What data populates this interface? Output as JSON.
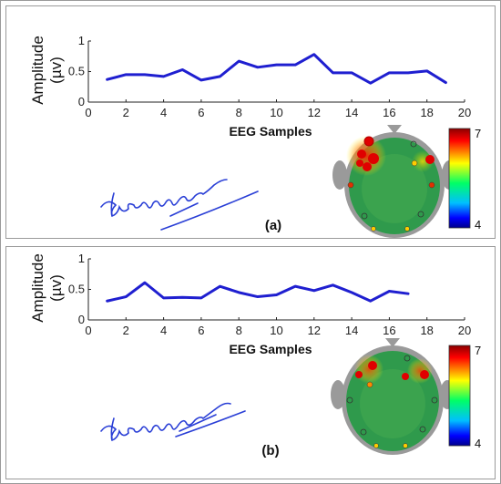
{
  "chart_data": [
    {
      "type": "line",
      "panel_label": "(a)",
      "xlabel": "EEG Samples",
      "ylabel_line1": "Amplitude",
      "ylabel_line2": "(µv)",
      "xlim": [
        0,
        20
      ],
      "ylim": [
        0,
        1
      ],
      "xticks": [
        "0",
        "2",
        "4",
        "6",
        "8",
        "10",
        "12",
        "14",
        "16",
        "18",
        "20"
      ],
      "yticks": [
        "0",
        "0.5",
        "1"
      ],
      "color": "#1f1fd0",
      "x": [
        1,
        2,
        3,
        4,
        5,
        6,
        7,
        8,
        9,
        10,
        11,
        12,
        13,
        14,
        15,
        16,
        17,
        18,
        19
      ],
      "y": [
        0.37,
        0.45,
        0.45,
        0.42,
        0.53,
        0.36,
        0.42,
        0.67,
        0.57,
        0.61,
        0.61,
        0.78,
        0.48,
        0.48,
        0.31,
        0.48,
        0.48,
        0.51,
        0.32
      ],
      "colorbar": {
        "max_label": "7",
        "min_label": "4"
      }
    },
    {
      "type": "line",
      "panel_label": "(b)",
      "xlabel": "EEG Samples",
      "ylabel_line1": "Amplitude",
      "ylabel_line2": "(µv)",
      "xlim": [
        0,
        20
      ],
      "ylim": [
        0,
        1
      ],
      "xticks": [
        "0",
        "2",
        "4",
        "6",
        "8",
        "10",
        "12",
        "14",
        "16",
        "18",
        "20"
      ],
      "yticks": [
        "0",
        "0.5",
        "1"
      ],
      "color": "#1f1fd0",
      "x": [
        1,
        2,
        3,
        4,
        5,
        6,
        7,
        8,
        9,
        10,
        11,
        12,
        13,
        14,
        15,
        16,
        17
      ],
      "y": [
        0.31,
        0.38,
        0.61,
        0.36,
        0.37,
        0.36,
        0.55,
        0.45,
        0.38,
        0.41,
        0.55,
        0.48,
        0.57,
        0.45,
        0.31,
        0.47,
        0.43
      ],
      "colorbar": {
        "max_label": "7",
        "min_label": "4"
      }
    }
  ]
}
